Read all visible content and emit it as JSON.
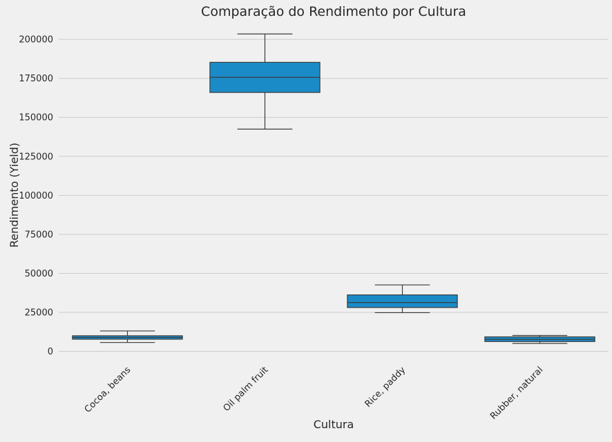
{
  "chart_data": {
    "type": "boxplot",
    "title": "Comparação do Rendimento por Cultura",
    "xlabel": "Cultura",
    "ylabel": "Rendimento (Yield)",
    "ylim": [
      -5500,
      212000
    ],
    "yticks": [
      0,
      25000,
      50000,
      75000,
      100000,
      125000,
      150000,
      175000,
      200000
    ],
    "ytick_labels": [
      "0",
      "25000",
      "50000",
      "75000",
      "100000",
      "125000",
      "150000",
      "175000",
      "200000"
    ],
    "grid": "horizontal",
    "categories": [
      "Cocoa, beans",
      "Oil palm fruit",
      "Rice, paddy",
      "Rubber, natural"
    ],
    "boxes": [
      {
        "category": "Cocoa, beans",
        "whisker_low": 5700,
        "q1": 7800,
        "median": 8900,
        "q3": 10000,
        "whisker_high": 13100
      },
      {
        "category": "Oil palm fruit",
        "whisker_low": 142500,
        "q1": 166000,
        "median": 175700,
        "q3": 185300,
        "whisker_high": 203500
      },
      {
        "category": "Rice, paddy",
        "whisker_low": 24800,
        "q1": 28100,
        "median": 31300,
        "q3": 36200,
        "whisker_high": 42600
      },
      {
        "category": "Rubber, natural",
        "whisker_low": 5100,
        "q1": 6300,
        "median": 7700,
        "q3": 9300,
        "whisker_high": 10200
      }
    ],
    "colors": {
      "box_fill": "#1b8bc8",
      "box_line": "#3a3a3a",
      "grid": "#cbcbcb",
      "background": "#f0f0f0",
      "text": "#262626"
    }
  }
}
